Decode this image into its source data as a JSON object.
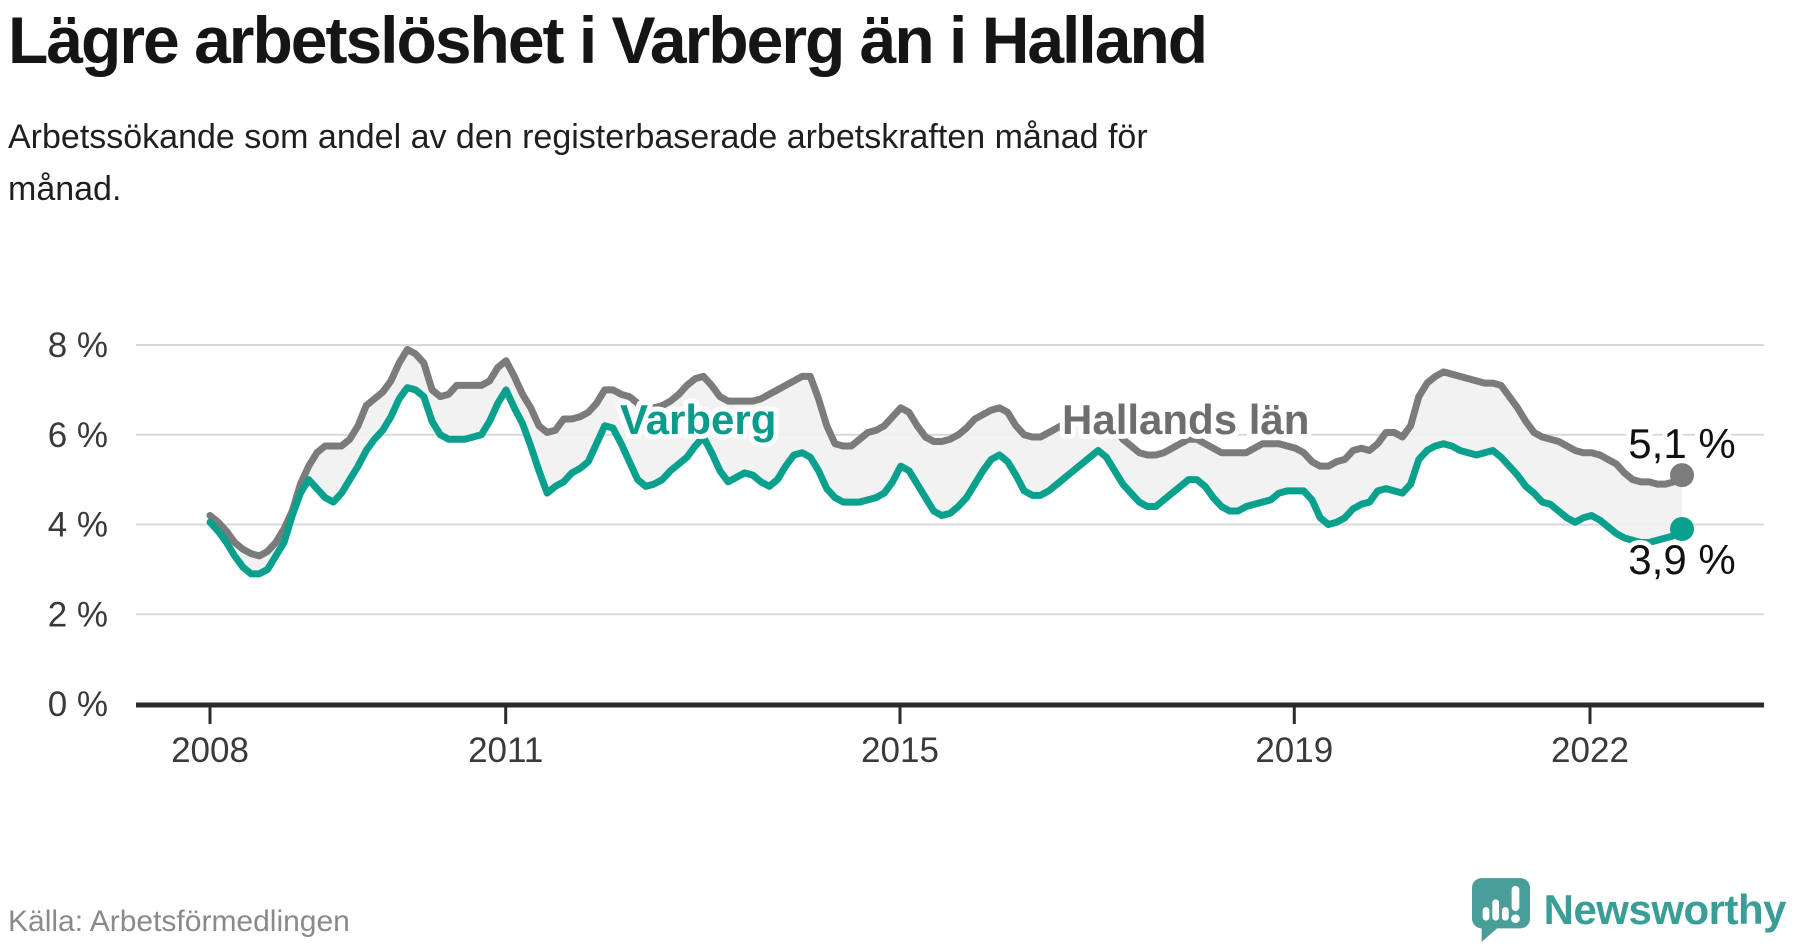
{
  "header": {
    "title": "Lägre arbetslöshet i Varberg än i Halland",
    "subtitle_line1": "Arbetssökande som andel av den registerbaserade arbetskraften månad för",
    "subtitle_line2": "månad."
  },
  "source": {
    "label": "Källa: Arbetsförmedlingen"
  },
  "brand": {
    "name": "Newsworthy",
    "text_color": "#3a9e97",
    "icon_color": "#4a9e99",
    "icon": "newsworthy-bubble-chart-icon"
  },
  "chart_data": {
    "type": "line",
    "title": "Lägre arbetslöshet i Varberg än i Halland",
    "x_unit": "month",
    "x_start": "2008-01",
    "x_end": "2022-12",
    "x_tick_years": [
      2008,
      2011,
      2015,
      2019,
      2022
    ],
    "x_tick_labels": [
      "2008",
      "2011",
      "2015",
      "2019",
      "2022"
    ],
    "y_ticks": [
      0,
      2,
      4,
      6,
      8
    ],
    "y_tick_labels": [
      "0 %",
      "2 %",
      "4 %",
      "6 %",
      "8 %"
    ],
    "ylim": [
      0,
      8
    ],
    "grid": true,
    "legend": "inline-labels",
    "band_fill": "#f1f1f1",
    "axis_color": "#2b2b2b",
    "grid_color": "#d9d9d9",
    "tick_label_color": "#3a3a3a",
    "end_label_color": "#111111",
    "series": [
      {
        "name": "Hallands län",
        "color": "#7b7b7b",
        "label_color": "#6e6e6e",
        "end_label": "5,1 %",
        "end_value": 5.1,
        "values": [
          4.2,
          4.05,
          3.85,
          3.6,
          3.45,
          3.35,
          3.3,
          3.4,
          3.6,
          3.9,
          4.3,
          4.9,
          5.3,
          5.6,
          5.75,
          5.75,
          5.75,
          5.9,
          6.2,
          6.65,
          6.8,
          6.95,
          7.2,
          7.6,
          7.9,
          7.8,
          7.6,
          7.0,
          6.85,
          6.9,
          7.1,
          7.1,
          7.1,
          7.1,
          7.2,
          7.5,
          7.65,
          7.3,
          6.9,
          6.6,
          6.2,
          6.05,
          6.1,
          6.35,
          6.35,
          6.4,
          6.5,
          6.7,
          7.0,
          7.0,
          6.9,
          6.85,
          6.7,
          6.6,
          6.6,
          6.65,
          6.75,
          6.9,
          7.1,
          7.25,
          7.3,
          7.1,
          6.85,
          6.75,
          6.75,
          6.75,
          6.75,
          6.8,
          6.9,
          7.0,
          7.1,
          7.2,
          7.3,
          7.3,
          6.8,
          6.2,
          5.8,
          5.75,
          5.75,
          5.9,
          6.05,
          6.1,
          6.2,
          6.4,
          6.6,
          6.5,
          6.2,
          5.95,
          5.85,
          5.85,
          5.9,
          6.0,
          6.15,
          6.35,
          6.45,
          6.55,
          6.6,
          6.5,
          6.2,
          6.0,
          5.95,
          5.95,
          6.05,
          6.15,
          6.25,
          6.3,
          6.35,
          6.45,
          6.5,
          6.4,
          6.15,
          5.9,
          5.75,
          5.6,
          5.55,
          5.55,
          5.6,
          5.7,
          5.8,
          5.9,
          5.9,
          5.8,
          5.7,
          5.6,
          5.6,
          5.6,
          5.6,
          5.7,
          5.8,
          5.8,
          5.8,
          5.75,
          5.7,
          5.6,
          5.4,
          5.3,
          5.3,
          5.4,
          5.45,
          5.65,
          5.7,
          5.65,
          5.8,
          6.05,
          6.05,
          5.95,
          6.2,
          6.85,
          7.15,
          7.3,
          7.4,
          7.35,
          7.3,
          7.25,
          7.2,
          7.15,
          7.15,
          7.1,
          6.85,
          6.6,
          6.3,
          6.05,
          5.95,
          5.9,
          5.85,
          5.75,
          5.65,
          5.6,
          5.6,
          5.55,
          5.45,
          5.35,
          5.15,
          5.0,
          4.95,
          4.95,
          4.9,
          4.9,
          4.95,
          5.1
        ]
      },
      {
        "name": "Varberg",
        "color": "#09a18e",
        "label_color": "#0a9c8a",
        "end_label": "3,9 %",
        "end_value": 3.9,
        "values": [
          4.05,
          3.85,
          3.6,
          3.3,
          3.05,
          2.9,
          2.9,
          3.0,
          3.3,
          3.6,
          4.2,
          4.7,
          5.0,
          4.8,
          4.6,
          4.5,
          4.7,
          5.0,
          5.3,
          5.65,
          5.9,
          6.1,
          6.4,
          6.8,
          7.05,
          7.0,
          6.85,
          6.3,
          6.0,
          5.9,
          5.9,
          5.9,
          5.95,
          6.0,
          6.3,
          6.7,
          7.0,
          6.6,
          6.25,
          5.75,
          5.2,
          4.7,
          4.85,
          4.95,
          5.15,
          5.25,
          5.4,
          5.8,
          6.2,
          6.15,
          5.8,
          5.4,
          5.0,
          4.85,
          4.9,
          5.0,
          5.2,
          5.35,
          5.5,
          5.75,
          5.95,
          5.6,
          5.2,
          4.95,
          5.05,
          5.15,
          5.1,
          4.95,
          4.85,
          5.0,
          5.3,
          5.55,
          5.6,
          5.5,
          5.2,
          4.8,
          4.6,
          4.5,
          4.5,
          4.5,
          4.55,
          4.6,
          4.7,
          4.95,
          5.3,
          5.2,
          4.9,
          4.6,
          4.3,
          4.2,
          4.25,
          4.4,
          4.6,
          4.9,
          5.2,
          5.45,
          5.55,
          5.4,
          5.1,
          4.75,
          4.65,
          4.65,
          4.75,
          4.9,
          5.05,
          5.2,
          5.35,
          5.5,
          5.65,
          5.5,
          5.2,
          4.9,
          4.7,
          4.5,
          4.4,
          4.4,
          4.55,
          4.7,
          4.85,
          5.0,
          5.0,
          4.85,
          4.6,
          4.4,
          4.3,
          4.3,
          4.4,
          4.45,
          4.5,
          4.55,
          4.7,
          4.75,
          4.75,
          4.75,
          4.55,
          4.15,
          4.0,
          4.05,
          4.15,
          4.35,
          4.45,
          4.5,
          4.75,
          4.8,
          4.75,
          4.7,
          4.9,
          5.45,
          5.65,
          5.75,
          5.8,
          5.75,
          5.65,
          5.6,
          5.55,
          5.6,
          5.65,
          5.5,
          5.3,
          5.1,
          4.85,
          4.7,
          4.5,
          4.45,
          4.3,
          4.15,
          4.05,
          4.15,
          4.2,
          4.1,
          3.95,
          3.8,
          3.7,
          3.65,
          3.6,
          3.6,
          3.65,
          3.7,
          3.75,
          3.9
        ]
      }
    ]
  }
}
